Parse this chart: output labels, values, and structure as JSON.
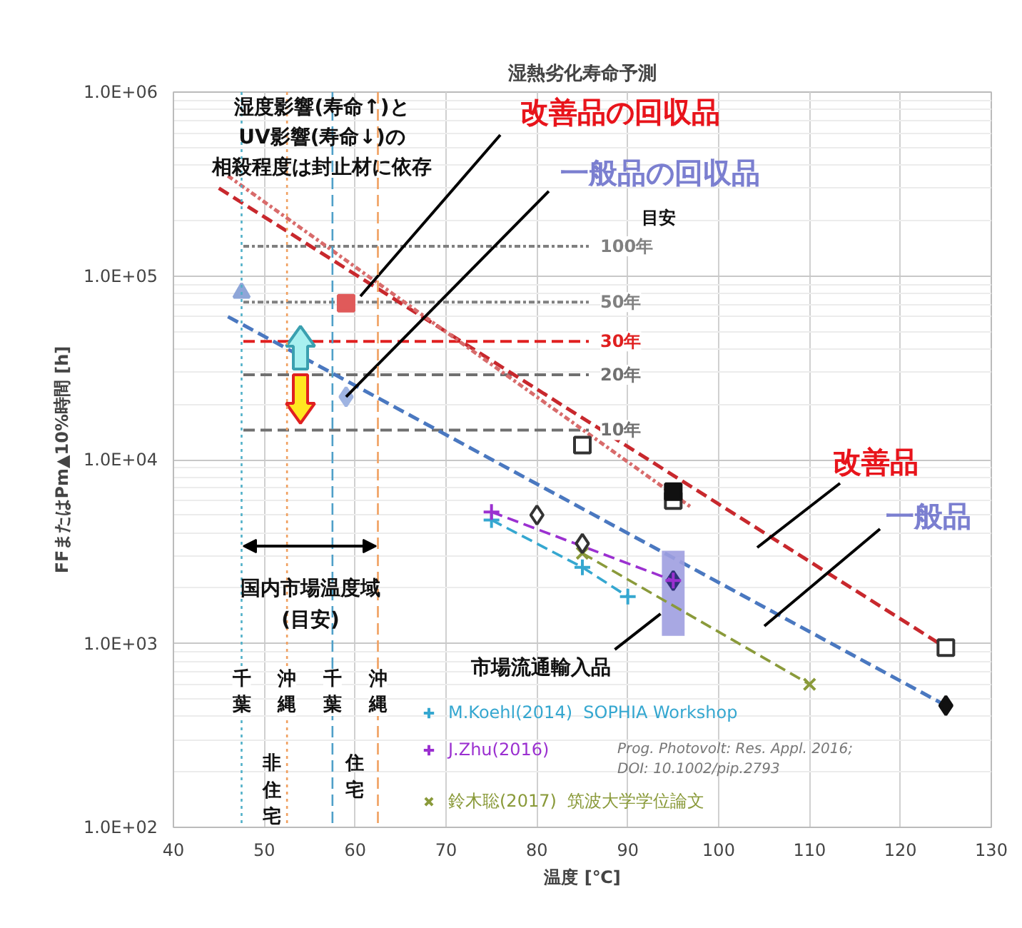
{
  "chart_data": {
    "type": "line",
    "title": "湿熱劣化寿命予測",
    "xlabel": "温度 [℃]",
    "ylabel": "FFまたはPm▲10%時間 [h]",
    "log": "y",
    "grid": true,
    "legend": "bottom",
    "xlim": [
      40,
      130
    ],
    "xticks": [
      40,
      50,
      60,
      70,
      80,
      90,
      100,
      110,
      120,
      130
    ],
    "ylim": [
      100,
      1000000
    ],
    "yticks": [
      {
        "value": 100,
        "label": "1.0E+02"
      },
      {
        "value": 1000,
        "label": "1.0E+03"
      },
      {
        "value": 10000,
        "label": "1.0E+04"
      },
      {
        "value": 100000,
        "label": "1.0E+05"
      },
      {
        "value": 1000000,
        "label": "1.0E+06"
      }
    ],
    "series": [
      {
        "color": "#c8282d",
        "line_style": "dashed",
        "x": [
          45,
          125
        ],
        "values": [
          300000,
          950
        ]
      },
      {
        "color": "#d86b6b",
        "line_style": "dashdot",
        "x": [
          46,
          97
        ],
        "values": [
          350000,
          5500
        ]
      },
      {
        "color": "#4a78c0",
        "line_style": "dashed",
        "x": [
          46,
          125
        ],
        "values": [
          60000,
          460
        ]
      },
      {
        "type": "bar",
        "color": "#9e9ee0",
        "x": [
          95
        ],
        "base": [
          1100
        ],
        "values": [
          2100
        ]
      },
      {
        "type": "scatter",
        "color": "#30307a",
        "marker": "diamond",
        "x": [
          95
        ],
        "values": [
          2200
        ]
      },
      {
        "name": "M.Koehl(2014)  SOPHIA Workshop",
        "color": "#35a7d0",
        "line_style": "dashed",
        "marker": "cross",
        "x": [
          75,
          85,
          90
        ],
        "values": [
          4700,
          2600,
          1800
        ]
      },
      {
        "name": "J.Zhu(2016)",
        "color": "#9b30d0",
        "line_style": "dashed",
        "marker": "cross",
        "x": [
          75,
          95
        ],
        "values": [
          5200,
          2200
        ]
      },
      {
        "name": "鈴木聡(2017)  筑波大学学位論文",
        "color": "#8a9a3a",
        "line_style": "dashed",
        "marker": "x",
        "x": [
          85,
          110
        ],
        "values": [
          3100,
          600
        ]
      },
      {
        "type": "scatter",
        "color": "#ffffff",
        "marker": "square",
        "x": [
          85,
          95,
          125
        ],
        "values": [
          12000,
          6000,
          950
        ]
      },
      {
        "type": "scatter",
        "color": "#111111",
        "marker": "square",
        "x": [
          95
        ],
        "values": [
          6700
        ]
      },
      {
        "type": "scatter",
        "color": "#ffffff",
        "marker": "diamond",
        "x": [
          80,
          85
        ],
        "values": [
          5000,
          3500
        ]
      },
      {
        "type": "scatter",
        "color": "#111111",
        "marker": "diamond",
        "x": [
          125
        ],
        "values": [
          460
        ]
      },
      {
        "type": "scatter",
        "color": "#8ea6d8",
        "marker": "triangle",
        "x": [
          47.5
        ],
        "values": [
          81000
        ]
      },
      {
        "type": "scatter",
        "color": "#e05a5a",
        "marker": "square",
        "x": [
          59
        ],
        "values": [
          71000
        ]
      },
      {
        "type": "scatter",
        "color": "#9fb4e2",
        "marker": "diamond",
        "x": [
          59
        ],
        "values": [
          22000
        ]
      }
    ],
    "ref_lines": [
      {
        "axis": "y",
        "value": 145000,
        "label": "100年",
        "color": "#808080",
        "line_style": "dashdot"
      },
      {
        "axis": "y",
        "value": 72000,
        "label": "50年",
        "color": "#808080",
        "line_style": "dashdot"
      },
      {
        "axis": "y",
        "value": 44000,
        "label": "30年",
        "color": "#e02020",
        "line_style": "dashed"
      },
      {
        "axis": "y",
        "value": 29000,
        "label": "20年",
        "color": "#707070",
        "line_style": "dashed"
      },
      {
        "axis": "y",
        "value": 14500,
        "label": "10年",
        "color": "#707070",
        "line_style": "dashed"
      },
      {
        "axis": "x",
        "value": 47.5,
        "label": "千葉",
        "color": "#4fb0c8",
        "line_style": "dotted"
      },
      {
        "axis": "x",
        "value": 52.5,
        "label": "沖縄",
        "color": "#f0a060",
        "line_style": "dotted"
      },
      {
        "axis": "x",
        "value": 57.5,
        "label": "千葉",
        "color": "#4fa0c8",
        "line_style": "dashed"
      },
      {
        "axis": "x",
        "value": 62.5,
        "label": "沖縄",
        "color": "#f0a060",
        "line_style": "dashed"
      }
    ],
    "annotations": [
      "湿度影響(寿命↑)と",
      "UV影響(寿命↓)の",
      "相殺程度は封止材に依存",
      "改善品の回収品",
      {
        "text": "一般品の回収品",
        "x": 59,
        "y": 22000
      },
      "目安",
      "改善品",
      "一般品",
      {
        "text": "市場流通輸入品",
        "x": 93.6,
        "y": 1450
      },
      "国内市場温度域",
      "(目安)",
      "非住宅",
      "住宅",
      "Prog. Photovolt: Res. Appl. 2016;\nDOI: 10.1002/pip.2793"
    ]
  }
}
